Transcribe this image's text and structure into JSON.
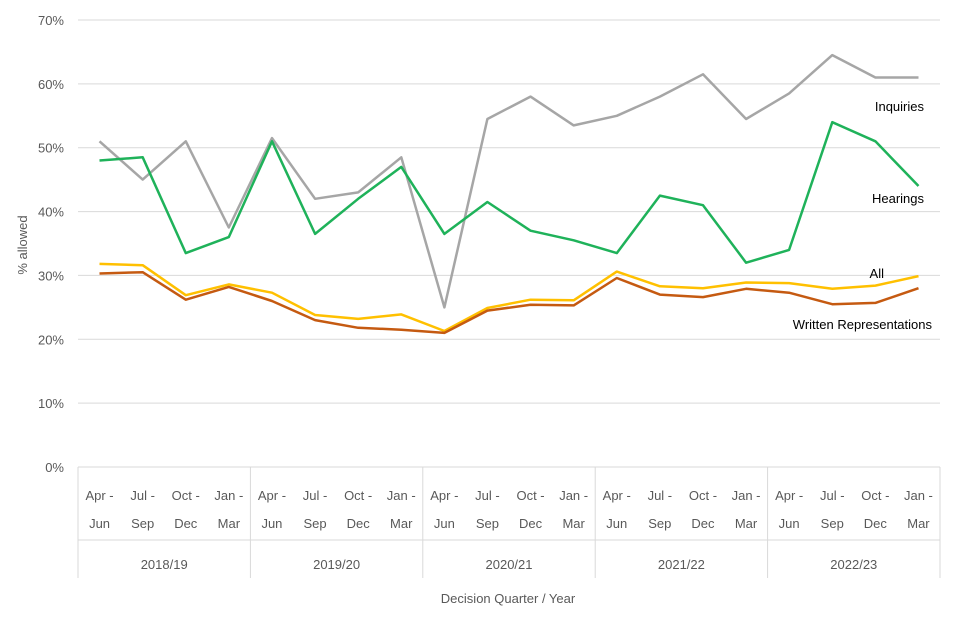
{
  "chart_data": {
    "type": "line",
    "xlabel": "Decision Quarter / Year",
    "ylabel": "% allowed",
    "ylim": [
      0,
      70
    ],
    "yticks": [
      "0%",
      "10%",
      "20%",
      "30%",
      "40%",
      "50%",
      "60%",
      "70%"
    ],
    "grid": true,
    "years": [
      "2018/19",
      "2019/20",
      "2020/21",
      "2021/22",
      "2022/23"
    ],
    "quarters": [
      {
        "top": "Apr -",
        "bottom": "Jun"
      },
      {
        "top": "Jul -",
        "bottom": "Sep"
      },
      {
        "top": "Oct -",
        "bottom": "Dec"
      },
      {
        "top": "Jan -",
        "bottom": "Mar"
      }
    ],
    "series": [
      {
        "name": "Inquiries",
        "color": "#a6a6a6",
        "values": [
          51,
          45,
          51,
          37.5,
          51.5,
          42,
          43,
          48.5,
          25,
          54.5,
          58,
          53.5,
          55,
          58,
          61.5,
          54.5,
          58.5,
          64.5,
          61,
          61
        ]
      },
      {
        "name": "Hearings",
        "color": "#1fb25a",
        "values": [
          48,
          48.5,
          33.5,
          36,
          51,
          36.5,
          42,
          47,
          36.5,
          41.5,
          37,
          35.5,
          33.5,
          42.5,
          41,
          32,
          34,
          54,
          51,
          44
        ]
      },
      {
        "name": "All",
        "color": "#ffc000",
        "values": [
          31.8,
          31.6,
          26.9,
          28.6,
          27.3,
          23.8,
          23.2,
          23.9,
          21.3,
          24.9,
          26.2,
          26.1,
          30.6,
          28.3,
          28,
          28.9,
          28.8,
          27.9,
          28.4,
          29.9
        ]
      },
      {
        "name": "Written Representations",
        "color": "#c55a11",
        "values": [
          30.3,
          30.5,
          26.2,
          28.2,
          26,
          23,
          21.8,
          21.5,
          21,
          24.5,
          25.4,
          25.3,
          29.6,
          27,
          26.6,
          27.9,
          27.3,
          25.5,
          25.7,
          28
        ]
      }
    ]
  }
}
